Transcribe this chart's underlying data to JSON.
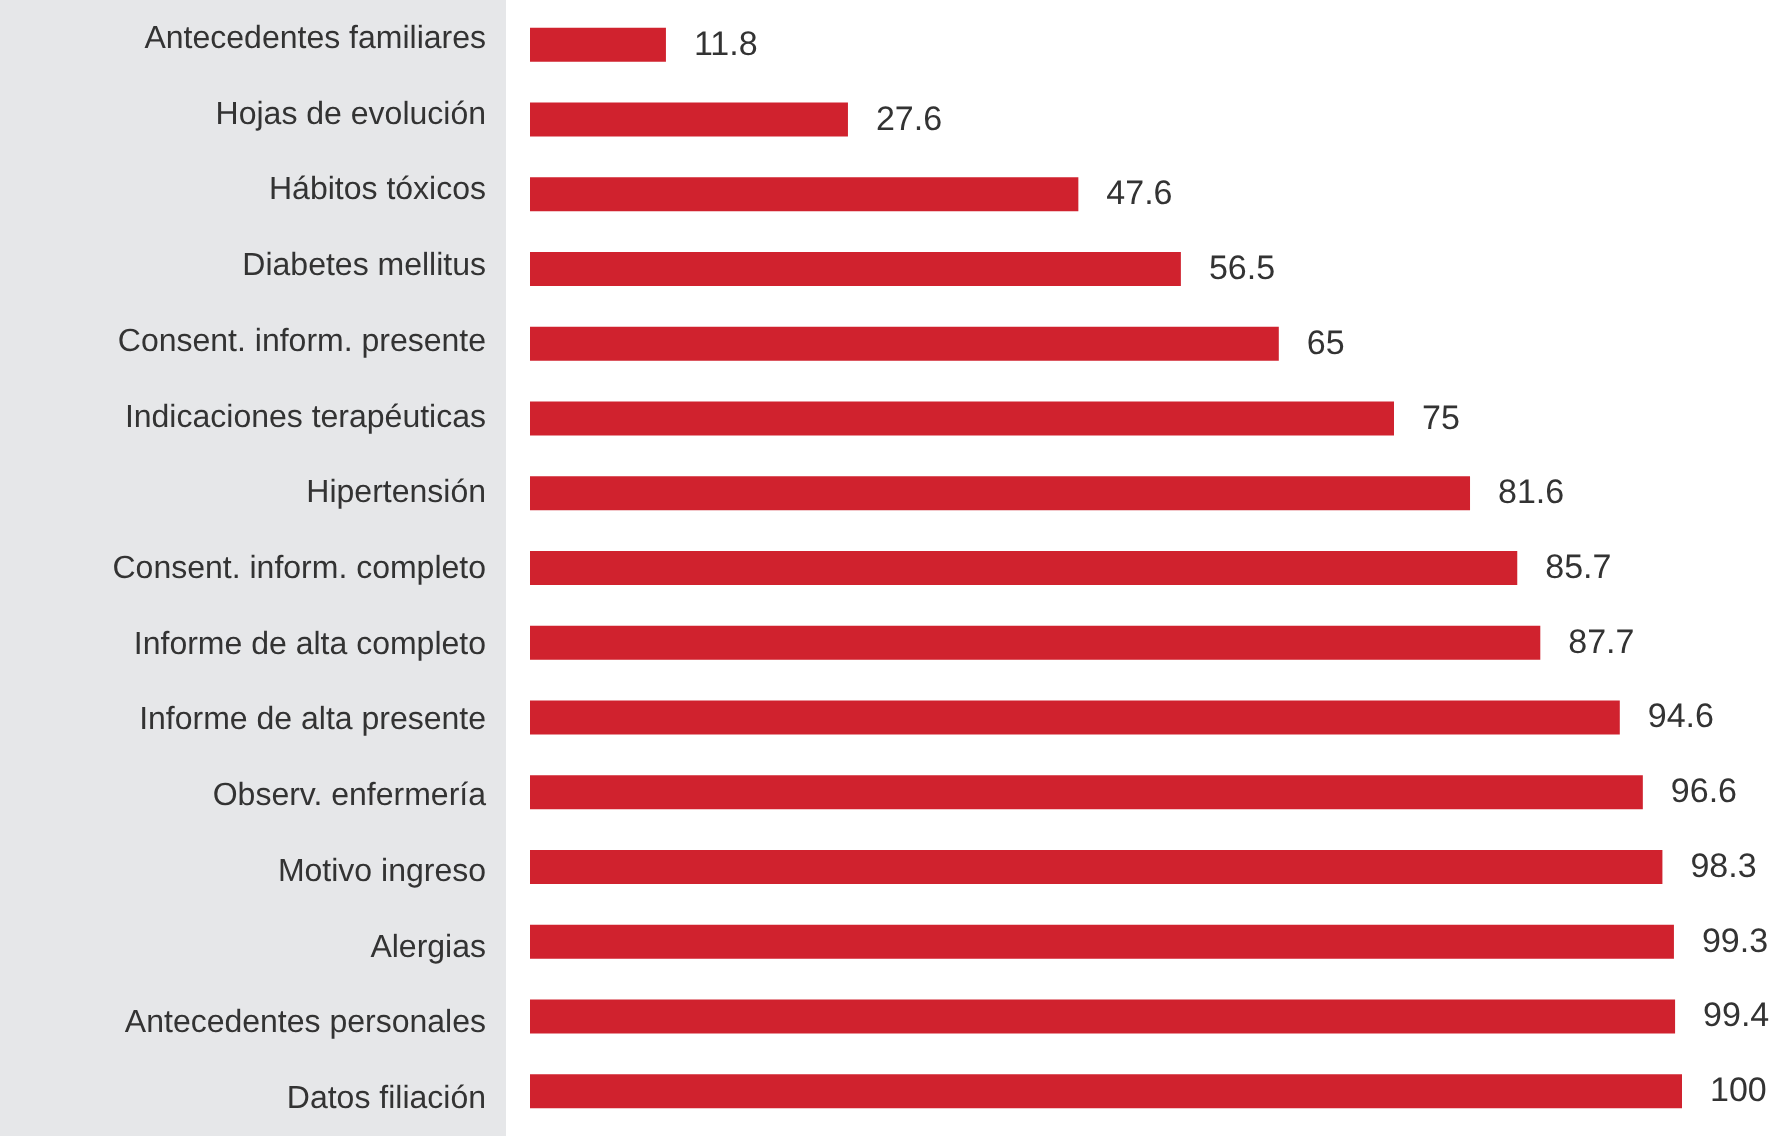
{
  "chart_data": {
    "type": "bar",
    "orientation": "horizontal",
    "data_labels": true,
    "color": "#d0222e",
    "categories": [
      "Antecedentes familiares",
      "Hojas de evolución",
      "Hábitos tóxicos",
      "Diabetes mellitus",
      "Consent. inform. presente",
      "Indicaciones terapéuticas",
      "Hipertensión",
      "Consent. inform. completo",
      "Informe de alta completo",
      "Informe de alta presente",
      "Observ. enfermería",
      "Motivo ingreso",
      "Alergias",
      "Antecedentes personales",
      "Datos filiación"
    ],
    "values": [
      11.8,
      27.6,
      47.6,
      56.5,
      65,
      75,
      81.6,
      85.7,
      87.7,
      94.6,
      96.6,
      98.3,
      99.3,
      99.4,
      100
    ]
  }
}
